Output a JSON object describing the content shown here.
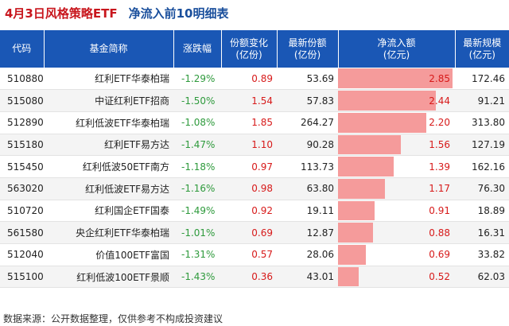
{
  "title": {
    "part1": "4月3日风格策略ETF",
    "part2": "净流入前10明细表"
  },
  "table": {
    "headers": [
      "代码",
      "基金简称",
      "涨跌幅",
      "份额变化\n(亿份)",
      "最新份额\n(亿份)",
      "净流入额\n(亿元)",
      "最新规模\n(亿元)"
    ],
    "max_net_inflow": 2.85,
    "rows": [
      {
        "code": "510880",
        "name": "红利ETF华泰柏瑞",
        "change": "-1.29%",
        "share_change": "0.89",
        "latest_share": "53.69",
        "net_inflow": "2.85",
        "scale": "172.46"
      },
      {
        "code": "515080",
        "name": "中证红利ETF招商",
        "change": "-1.50%",
        "share_change": "1.54",
        "latest_share": "57.83",
        "net_inflow": "2.44",
        "scale": "91.21"
      },
      {
        "code": "512890",
        "name": "红利低波ETF华泰柏瑞",
        "change": "-1.08%",
        "share_change": "1.85",
        "latest_share": "264.27",
        "net_inflow": "2.20",
        "scale": "313.80"
      },
      {
        "code": "515180",
        "name": "红利ETF易方达",
        "change": "-1.47%",
        "share_change": "1.10",
        "latest_share": "90.28",
        "net_inflow": "1.56",
        "scale": "127.19"
      },
      {
        "code": "515450",
        "name": "红利低波50ETF南方",
        "change": "-1.18%",
        "share_change": "0.97",
        "latest_share": "113.73",
        "net_inflow": "1.39",
        "scale": "162.16"
      },
      {
        "code": "563020",
        "name": "红利低波ETF易方达",
        "change": "-1.16%",
        "share_change": "0.98",
        "latest_share": "63.80",
        "net_inflow": "1.17",
        "scale": "76.30"
      },
      {
        "code": "510720",
        "name": "红利国企ETF国泰",
        "change": "-1.49%",
        "share_change": "0.92",
        "latest_share": "19.11",
        "net_inflow": "0.91",
        "scale": "18.89"
      },
      {
        "code": "561580",
        "name": "央企红利ETF华泰柏瑞",
        "change": "-1.01%",
        "share_change": "0.69",
        "latest_share": "12.87",
        "net_inflow": "0.88",
        "scale": "16.31"
      },
      {
        "code": "512040",
        "name": "价值100ETF富国",
        "change": "-1.31%",
        "share_change": "0.57",
        "latest_share": "28.06",
        "net_inflow": "0.69",
        "scale": "33.82"
      },
      {
        "code": "515100",
        "name": "红利低波100ETF景顺",
        "change": "-1.43%",
        "share_change": "0.36",
        "latest_share": "43.01",
        "net_inflow": "0.52",
        "scale": "62.03"
      }
    ]
  },
  "source": "数据来源：公开数据整理，仅供参考不构成投资建议"
}
